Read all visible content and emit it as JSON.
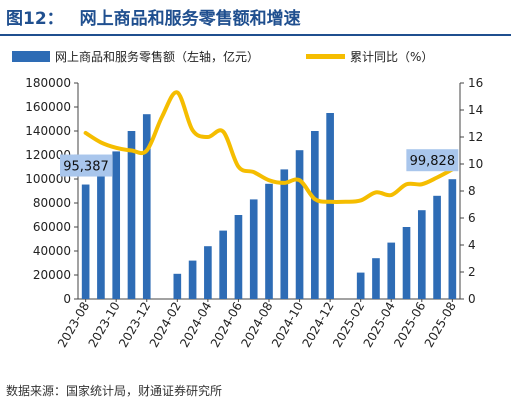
{
  "header": {
    "fig_label": "图12：",
    "title": "网上商品和服务零售额和增速"
  },
  "source": "数据来源：国家统计局，财通证券研究所",
  "colors": {
    "bar": "#2e6cb5",
    "line": "#f5bd00",
    "callout": "#a9c6ec"
  },
  "chart_data": {
    "type": "bar+line",
    "categories": [
      "2023-08",
      "2023-09",
      "2023-10",
      "2023-11",
      "2023-12",
      "2024-01",
      "2024-02",
      "2024-03",
      "2024-04",
      "2024-05",
      "2024-06",
      "2024-07",
      "2024-08",
      "2024-09",
      "2024-10",
      "2024-11",
      "2024-12",
      "2025-01",
      "2025-02",
      "2025-03",
      "2025-04",
      "2025-05",
      "2025-06",
      "2025-07",
      "2025-08"
    ],
    "x_tick_labels": [
      "2023-08",
      "2023-10",
      "2023-12",
      "2024-02",
      "2024-04",
      "2024-06",
      "2024-08",
      "2024-10",
      "2024-12",
      "2025-02",
      "2025-04",
      "2025-06",
      "2025-08"
    ],
    "series": [
      {
        "name": "网上商品和服务零售额（左轴，亿元）",
        "type": "bar",
        "axis": "left",
        "values": [
          95387,
          110000,
          123000,
          140000,
          154000,
          null,
          21000,
          32000,
          44000,
          57000,
          70000,
          83000,
          96000,
          108000,
          124000,
          140000,
          155000,
          null,
          22000,
          34000,
          47000,
          60000,
          74000,
          86000,
          99828
        ]
      },
      {
        "name": "累计同比（%）",
        "type": "line",
        "axis": "right",
        "values": [
          12.3,
          11.6,
          11.2,
          11.0,
          11.0,
          13.5,
          15.3,
          12.5,
          12.0,
          12.4,
          9.8,
          9.4,
          8.8,
          8.6,
          8.8,
          7.4,
          7.2,
          7.2,
          7.3,
          7.9,
          7.7,
          8.5,
          8.5,
          9.0,
          9.6
        ]
      }
    ],
    "y_left": {
      "min": 0,
      "max": 180000,
      "step": 20000,
      "ticks": [
        "0",
        "20000",
        "40000",
        "60000",
        "80000",
        "100000",
        "120000",
        "140000",
        "160000",
        "180000"
      ]
    },
    "y_right": {
      "min": 0,
      "max": 16,
      "step": 2,
      "ticks": [
        "0",
        "2",
        "4",
        "6",
        "8",
        "10",
        "12",
        "14",
        "16"
      ]
    },
    "annotations": [
      {
        "text": "95,387",
        "category": "2023-08"
      },
      {
        "text": "99,828",
        "category": "2025-08"
      }
    ],
    "legend": "top",
    "grid": false
  }
}
